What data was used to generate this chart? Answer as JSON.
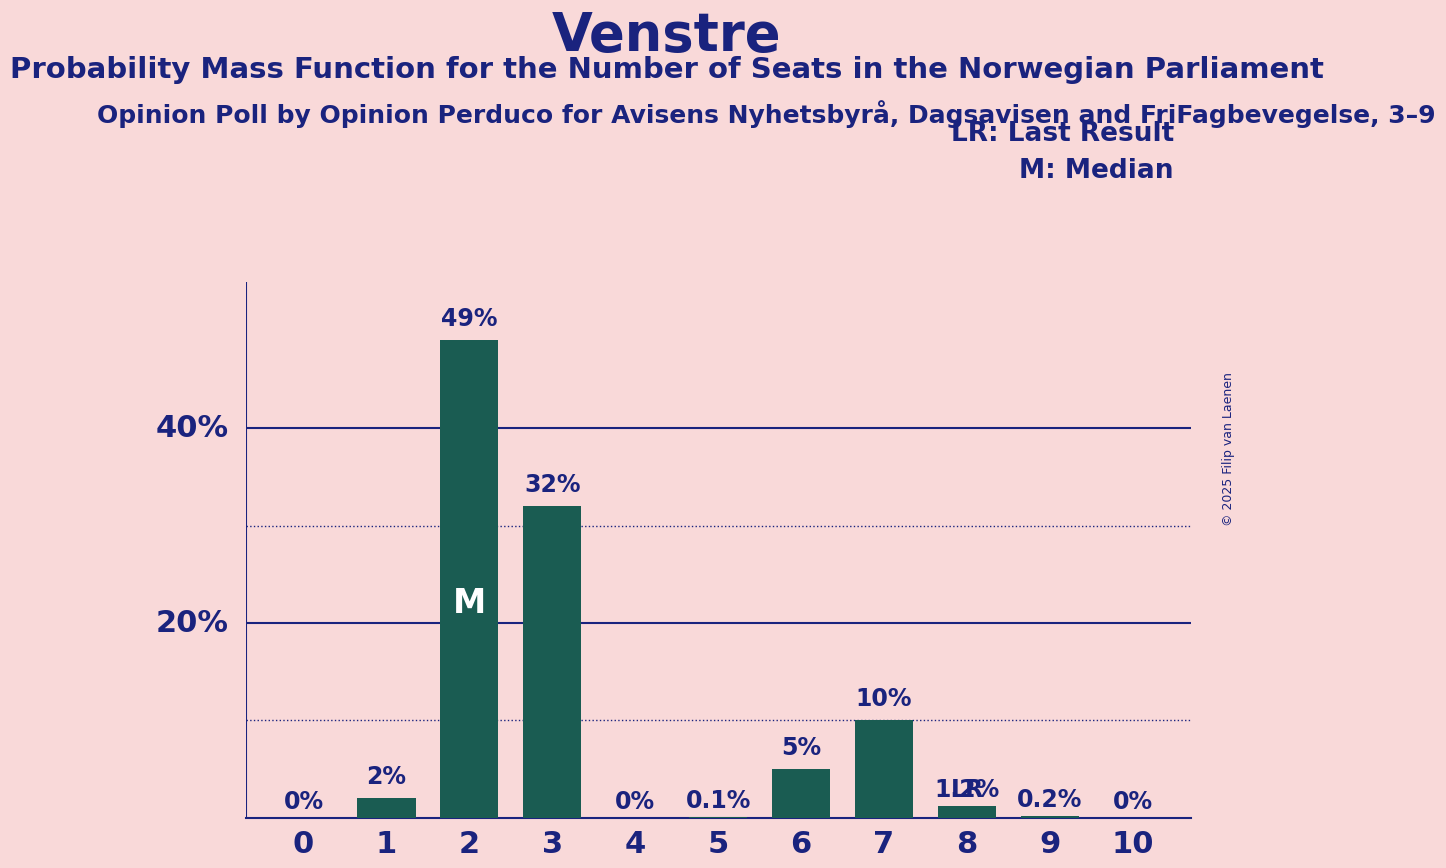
{
  "title": "Venstre",
  "subtitle1": "Probability Mass Function for the Number of Seats in the Norwegian Parliament",
  "subtitle2": "Opinion Poll by Opinion Perduco for Avisens Nyhetsbyrå, Dagsavisen and FriFagbevegelse, 3–9",
  "copyright": "© 2025 Filip van Laenen",
  "categories": [
    0,
    1,
    2,
    3,
    4,
    5,
    6,
    7,
    8,
    9,
    10
  ],
  "values": [
    0.0,
    2.0,
    49.0,
    32.0,
    0.0,
    0.1,
    5.0,
    10.0,
    1.2,
    0.2,
    0.0
  ],
  "bar_labels": [
    "0%",
    "2%",
    "49%",
    "32%",
    "0%",
    "0.1%",
    "5%",
    "10%",
    "1.2%",
    "0.2%",
    "0%"
  ],
  "bar_color": "#1a5c52",
  "background_color": "#f9d9d9",
  "text_color": "#1a237e",
  "title_color": "#1a237e",
  "median_bar": 2,
  "median_label": "M",
  "lr_bar": 8,
  "lr_label": "LR",
  "legend_lr": "LR: Last Result",
  "legend_m": "M: Median",
  "ylim": [
    0,
    55
  ],
  "dotted_lines": [
    10,
    30
  ],
  "solid_lines": [
    20,
    40
  ],
  "bar_label_fontsize": 17,
  "title_fontsize": 38,
  "subtitle1_fontsize": 21,
  "subtitle2_fontsize": 18,
  "axis_label_fontsize": 22,
  "legend_fontsize": 19,
  "median_label_fontsize": 24,
  "lr_label_fontsize": 17
}
